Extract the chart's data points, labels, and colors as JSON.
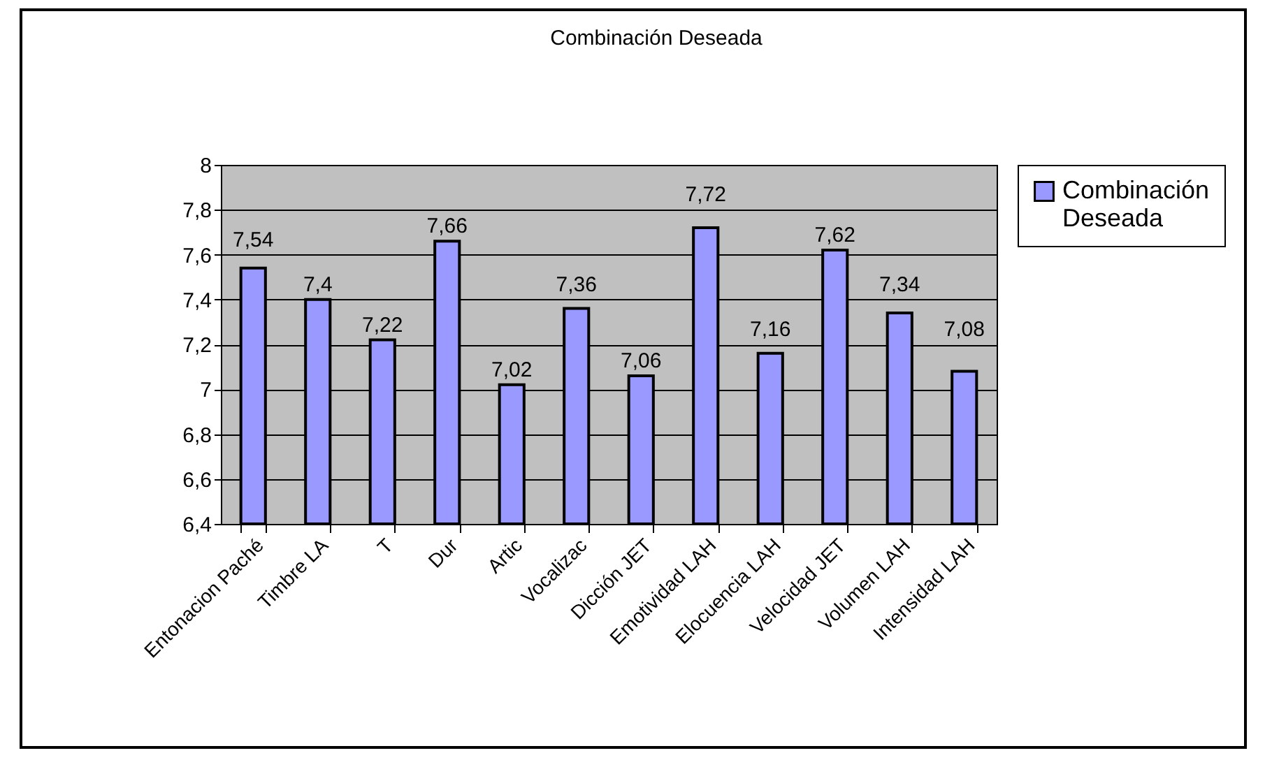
{
  "chart_data": {
    "type": "bar",
    "title": "Combinación Deseada",
    "categories": [
      "Entonacion Paché",
      "Timbre LA",
      "T",
      "Dur",
      "Artic",
      "Vocalizac",
      "Dicción JET",
      "Emotividad LAH",
      "Elocuencia LAH",
      "Velocidad JET",
      "Volumen LAH",
      "Intensidad LAH"
    ],
    "series": [
      {
        "name": "Combinación Deseada",
        "color": "#9999ff",
        "values": [
          7.54,
          7.4,
          7.22,
          7.66,
          7.02,
          7.36,
          7.06,
          7.72,
          7.16,
          7.62,
          7.34,
          7.08
        ],
        "value_labels": [
          "7,54",
          "7,4",
          "7,22",
          "7,66",
          "7,02",
          "7,36",
          "7,06",
          "7,72",
          "7,16",
          "7,62",
          "7,34",
          "7,08"
        ]
      }
    ],
    "ylim": [
      6.4,
      8
    ],
    "yticks": [
      {
        "value": 6.4,
        "label": "6,4"
      },
      {
        "value": 6.6,
        "label": "6,6"
      },
      {
        "value": 6.8,
        "label": "6,8"
      },
      7,
      {
        "value": 7.2,
        "label": "7,2"
      },
      {
        "value": 7.4,
        "label": "7,4"
      },
      {
        "value": 7.6,
        "label": "7,6"
      },
      {
        "value": 7.8,
        "label": "7,8"
      },
      8
    ],
    "grid": "y",
    "legend": "right"
  }
}
